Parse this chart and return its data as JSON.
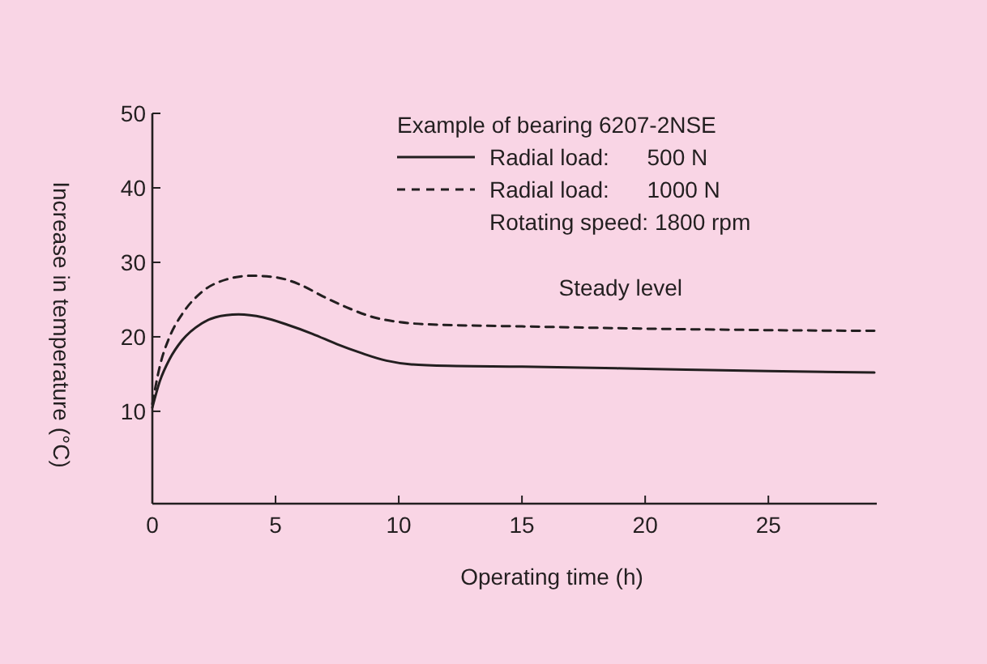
{
  "chart_data": {
    "type": "line",
    "xlabel": "Operating time (h)",
    "ylabel": "Increase in temperature (°C)",
    "legend_title": "Example of bearing 6207-2NSE",
    "legend": "top right",
    "grid": false,
    "marker": "none",
    "xlim": [
      0,
      29.4
    ],
    "xticks": [
      0,
      5,
      10,
      15,
      20,
      25
    ],
    "ylim": [
      -2.4,
      50
    ],
    "yticks": [
      10,
      20,
      30,
      40,
      50
    ],
    "series": [
      {
        "name": "Radial load:      500 N",
        "color": "#231f20",
        "line_style": "solid",
        "x": [
          0,
          0.3,
          0.7,
          1.2,
          2,
          3,
          3.5,
          4.5,
          5.5,
          6.5,
          7.5,
          8.5,
          9.5,
          10.5,
          12,
          15,
          20,
          25,
          29.3
        ],
        "values": [
          10.5,
          14,
          17,
          19.5,
          21.8,
          22.9,
          23,
          22.6,
          21.6,
          20.4,
          19,
          17.8,
          16.8,
          16.3,
          16.1,
          16,
          15.7,
          15.4,
          15.2
        ]
      },
      {
        "name": "Radial load:      1000 N",
        "color": "#231f20",
        "line_style": "dashed",
        "x": [
          0,
          0.3,
          0.7,
          1.2,
          2,
          3,
          4,
          5,
          6,
          7,
          8,
          9,
          10,
          11,
          15,
          20,
          25,
          29.3
        ],
        "values": [
          11,
          16,
          20,
          23,
          26,
          27.7,
          28.2,
          28,
          27,
          25.3,
          23.8,
          22.6,
          22,
          21.7,
          21.4,
          21.1,
          20.9,
          20.8
        ]
      }
    ],
    "annotations": [
      "Rotating speed: 1800 rpm",
      "Steady level"
    ]
  }
}
